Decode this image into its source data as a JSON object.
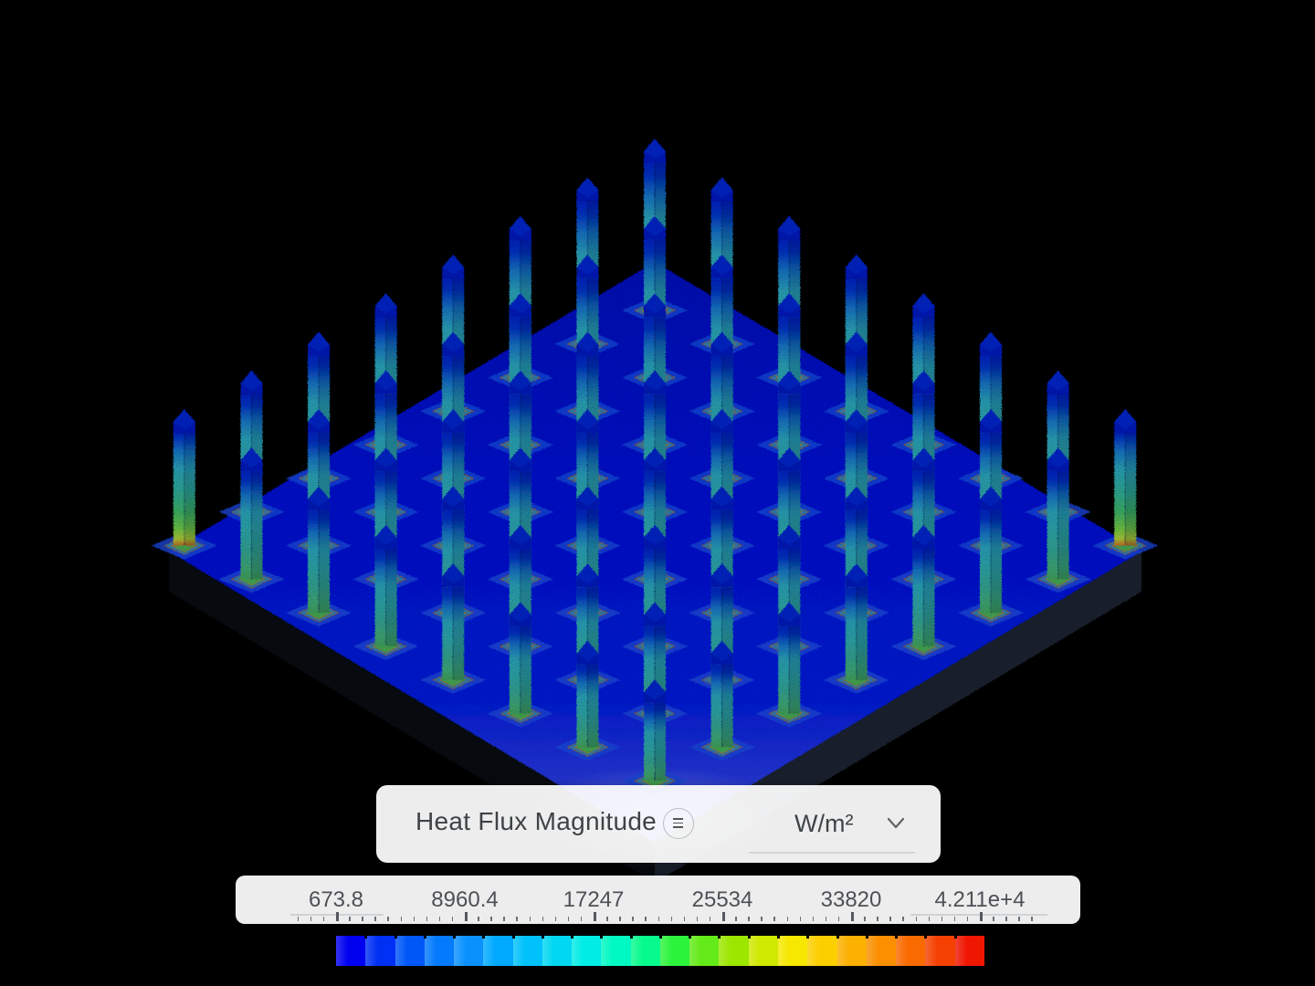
{
  "app": {
    "background": "#000000"
  },
  "field_panel": {
    "title": "Heat Flux Magnitude",
    "menu_icon": "hamburger-icon",
    "unit": {
      "value": "W/m²",
      "chevron_icon": "chevron-down-icon"
    }
  },
  "legend": {
    "values": [
      "673.8",
      "8960.4",
      "17247",
      "25534",
      "33820",
      "4.211e+4"
    ],
    "editable": [
      true,
      false,
      false,
      false,
      false,
      true
    ],
    "min_value": "673.8",
    "max_value": "4.211e+4"
  },
  "colorbar": {
    "colors": [
      "#0001ee",
      "#0030f4",
      "#0057f8",
      "#047afc",
      "#0b91fe",
      "#01a9ff",
      "#00c1fa",
      "#00d7f1",
      "#00ece5",
      "#00f8c2",
      "#07fa8c",
      "#2cf33c",
      "#63ea18",
      "#9ce600",
      "#cfe900",
      "#f6e800",
      "#fccf00",
      "#fcb000",
      "#fb8f00",
      "#f96a00",
      "#f44102",
      "#ef1602"
    ]
  },
  "scene": {
    "description": "isometric pin-fin heat sink colored by heat flux magnitude",
    "grid_rows": 8,
    "grid_cols": 8,
    "plate_top_color": "#0712b2",
    "plate_bottom_color": "#3a4cd8",
    "pin_cap_color": "#0a1db6",
    "pin_shaft_teal": "#2da0a4",
    "pin_base_green": "#3f9c5a",
    "corner_pin_green": "#a5c435",
    "hot_edge_orange": "#c06828",
    "halo_blue": "#1e49d8"
  }
}
